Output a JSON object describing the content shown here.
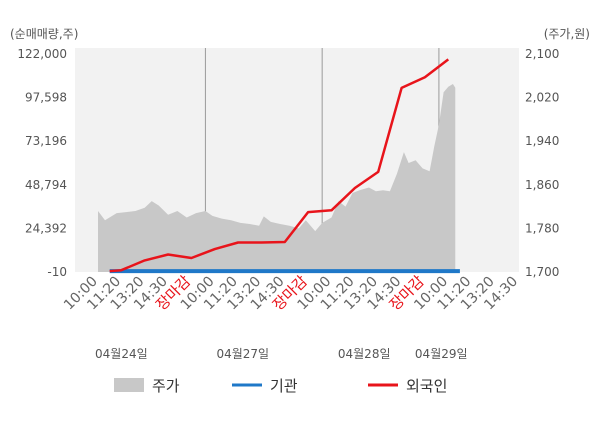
{
  "units": {
    "left": "(순매매량,주)",
    "right": "(주가,원)"
  },
  "left_ticks": [
    "122,000",
    "97,598",
    "73,196",
    "48,794",
    "24,392",
    "-10"
  ],
  "right_ticks": [
    "2,100",
    "2,020",
    "1,940",
    "1,860",
    "1,780",
    "1,700"
  ],
  "legend": [
    {
      "label": "주가",
      "color": "#c8c8c8"
    },
    {
      "label": "기관",
      "color": "#1f78c8"
    },
    {
      "label": "외국인",
      "color": "#e8141b"
    }
  ],
  "chart_data": {
    "type": "line",
    "x": [
      "10:00",
      "11:20",
      "13:20",
      "14:30",
      "장마감",
      "10:00",
      "11:20",
      "13:20",
      "14:30",
      "장마감",
      "10:00",
      "11:20",
      "13:20",
      "14:30",
      "장마감",
      "10:00",
      "11:20",
      "13:20",
      "14:30"
    ],
    "x_highlight": [
      "장마감"
    ],
    "dates": [
      "04월24일",
      "04월27일",
      "04월28일",
      "04월29일"
    ],
    "y_left": {
      "label": "(순매매량,주)",
      "range": [
        -10,
        122000
      ]
    },
    "y_right": {
      "label": "(주가,원)",
      "range": [
        1700,
        2100
      ]
    },
    "series": [
      {
        "name": "주가",
        "kind": "area",
        "axis": "right",
        "color": "#c8c8c8",
        "points": [
          [
            0,
            1812
          ],
          [
            0.3,
            1795
          ],
          [
            0.8,
            1808
          ],
          [
            1.2,
            1810
          ],
          [
            1.6,
            1812
          ],
          [
            2.0,
            1818
          ],
          [
            2.3,
            1830
          ],
          [
            2.6,
            1822
          ],
          [
            3.0,
            1805
          ],
          [
            3.4,
            1812
          ],
          [
            3.8,
            1800
          ],
          [
            4.2,
            1808
          ],
          [
            4.6,
            1812
          ],
          [
            4.9,
            1803
          ],
          [
            5.3,
            1798
          ],
          [
            5.7,
            1795
          ],
          [
            6.1,
            1790
          ],
          [
            6.5,
            1788
          ],
          [
            6.9,
            1785
          ],
          [
            7.1,
            1802
          ],
          [
            7.4,
            1792
          ],
          [
            7.8,
            1788
          ],
          [
            8.2,
            1785
          ],
          [
            8.6,
            1780
          ],
          [
            8.9,
            1795
          ],
          [
            9.3,
            1775
          ],
          [
            9.6,
            1790
          ],
          [
            10.0,
            1800
          ],
          [
            10.3,
            1830
          ],
          [
            10.6,
            1820
          ],
          [
            10.9,
            1845
          ],
          [
            11.2,
            1850
          ],
          [
            11.6,
            1855
          ],
          [
            11.9,
            1848
          ],
          [
            12.2,
            1850
          ],
          [
            12.5,
            1848
          ],
          [
            12.8,
            1880
          ],
          [
            13.1,
            1920
          ],
          [
            13.3,
            1900
          ],
          [
            13.6,
            1905
          ],
          [
            13.9,
            1890
          ],
          [
            14.2,
            1885
          ],
          [
            14.4,
            1930
          ],
          [
            14.6,
            1970
          ],
          [
            14.8,
            2030
          ],
          [
            15.0,
            2040
          ],
          [
            15.2,
            2045
          ],
          [
            15.3,
            2038
          ]
        ]
      },
      {
        "name": "기관",
        "kind": "line",
        "axis": "left",
        "color": "#1f78c8",
        "points": [
          [
            0.5,
            500
          ],
          [
            15.5,
            500
          ]
        ]
      },
      {
        "name": "외국인",
        "kind": "line",
        "axis": "left",
        "color": "#e8141b",
        "points": [
          [
            0.5,
            500
          ],
          [
            1.0,
            1000
          ],
          [
            2.0,
            6500
          ],
          [
            3.0,
            9800
          ],
          [
            4.0,
            7800
          ],
          [
            5.0,
            12800
          ],
          [
            6.0,
            16500
          ],
          [
            7.0,
            16500
          ],
          [
            8.0,
            16800
          ],
          [
            9.0,
            33500
          ],
          [
            10.0,
            34500
          ],
          [
            11.0,
            47000
          ],
          [
            12.0,
            56000
          ],
          [
            13.0,
            103000
          ],
          [
            14.0,
            109000
          ],
          [
            15.0,
            119000
          ]
        ]
      }
    ]
  }
}
